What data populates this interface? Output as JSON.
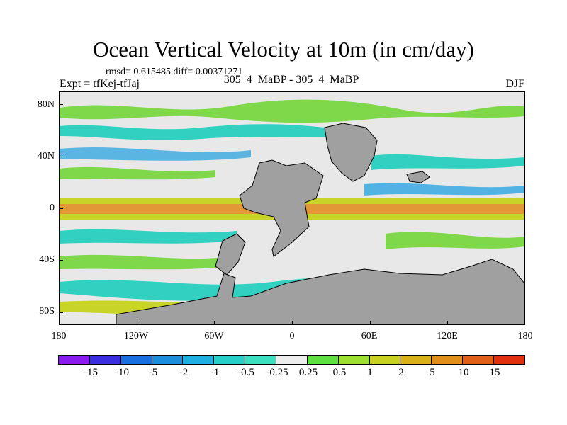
{
  "title": "Ocean Vertical Velocity at 10m (in cm/day)",
  "subtitle": "rmsd= 0.615485 diff= 0.00371271",
  "left_label": "Expt = tfKej-tfJaj",
  "center_label": "305_4_MaBP - 305_4_MaBP",
  "right_label": "DJF",
  "y_axis": {
    "ticks": [
      "80N",
      "40N",
      "0",
      "40S",
      "80S"
    ],
    "values": [
      80,
      40,
      0,
      -40,
      -80
    ],
    "range": [
      -90,
      90
    ]
  },
  "x_axis": {
    "ticks": [
      "180",
      "120W",
      "60W",
      "0",
      "60E",
      "120E",
      "180"
    ],
    "values": [
      -180,
      -120,
      -60,
      0,
      60,
      120,
      180
    ],
    "range": [
      -180,
      180
    ]
  },
  "colorbar": {
    "labels": [
      "-15",
      "-10",
      "-5",
      "-2",
      "-1",
      "-0.5",
      "-0.25",
      "0.25",
      "0.5",
      "1",
      "2",
      "5",
      "10",
      "15"
    ],
    "colors": [
      "#8b1cf0",
      "#3a2ee0",
      "#1a6fe0",
      "#1c8fdc",
      "#1db0e0",
      "#26d0c8",
      "#3be0c0",
      "#ededed",
      "#5ee040",
      "#9ee030",
      "#c8d020",
      "#d8b018",
      "#e09018",
      "#e06018",
      "#e03010"
    ]
  },
  "colors": {
    "land": "#a0a0a0",
    "neutral": "#e8e8e8",
    "green": "#7ed84a",
    "yellow": "#c8d428",
    "orange": "#e08a18",
    "cyan": "#32d0c0",
    "blue": "#20a0e0"
  }
}
